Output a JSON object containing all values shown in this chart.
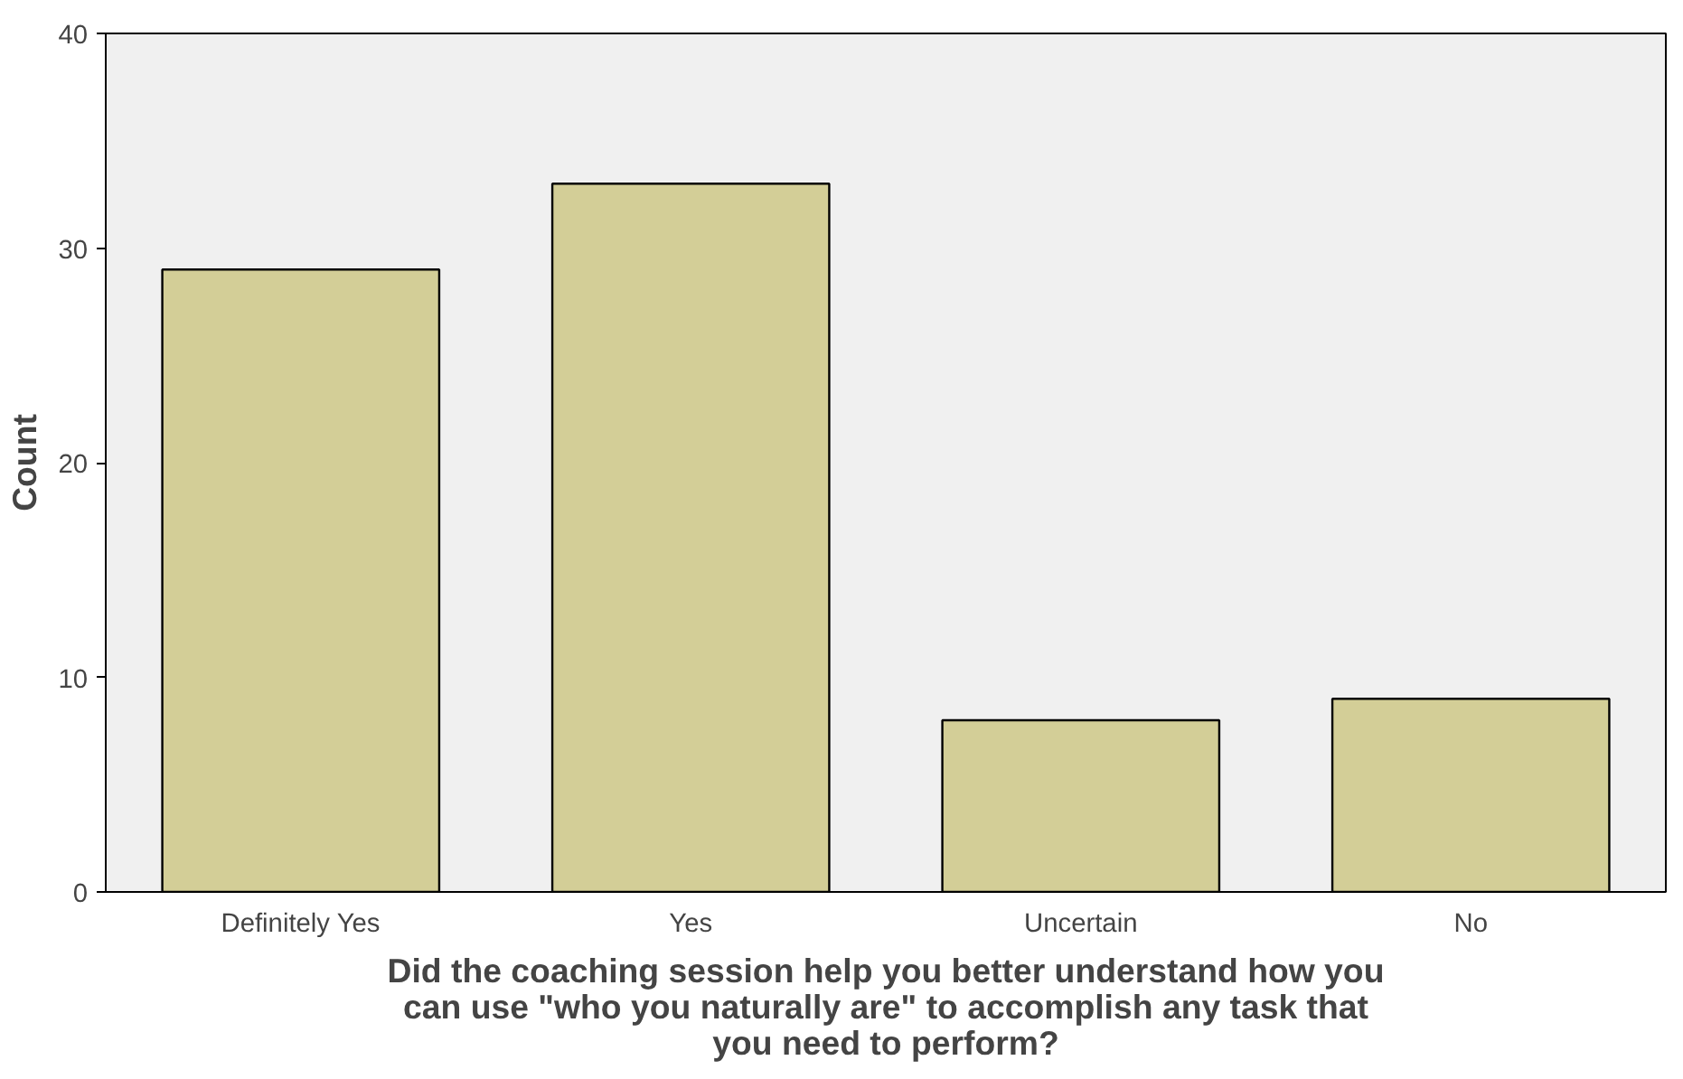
{
  "chart_data": {
    "type": "bar",
    "xlabel": "Did the coaching session help you better understand how you can use \"who you naturally are\" to accomplish any task that you need to perform?",
    "ylabel": "Count",
    "categories": [
      "Definitely Yes",
      "Yes",
      "Uncertain",
      "No"
    ],
    "values": [
      29,
      33,
      8,
      9
    ],
    "color": "#d3ce97",
    "ylim": [
      0,
      40
    ],
    "yticks": [
      0,
      10,
      20,
      30,
      40
    ],
    "grid": false
  }
}
